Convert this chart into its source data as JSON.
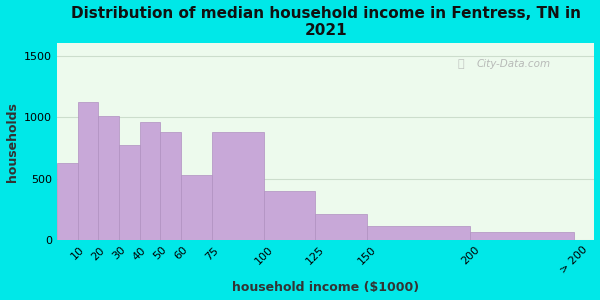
{
  "title": "Distribution of median household income in Fentress, TN in\n2021",
  "xlabel": "household income ($1000)",
  "ylabel": "households",
  "background_color": "#00e8e8",
  "plot_bg_color": "#edfaed",
  "bar_color": "#c8a8d8",
  "bar_edge_color": "#b090c0",
  "bin_edges": [
    0,
    10,
    20,
    30,
    40,
    50,
    60,
    75,
    100,
    125,
    150,
    200,
    250
  ],
  "bin_labels": [
    "10",
    "20",
    "30",
    "40",
    "50",
    "60",
    "75",
    "100",
    "125",
    "150",
    "200",
    "> 200"
  ],
  "values": [
    625,
    1120,
    1005,
    770,
    960,
    875,
    525,
    880,
    395,
    210,
    115,
    65
  ],
  "ylim": [
    0,
    1600
  ],
  "yticks": [
    0,
    500,
    1000,
    1500
  ],
  "xlim": [
    0,
    260
  ],
  "xtick_positions": [
    10,
    20,
    30,
    40,
    50,
    60,
    75,
    100,
    125,
    150,
    200,
    250
  ],
  "title_fontsize": 11,
  "axis_label_fontsize": 9,
  "tick_fontsize": 8,
  "watermark": "City-Data.com"
}
